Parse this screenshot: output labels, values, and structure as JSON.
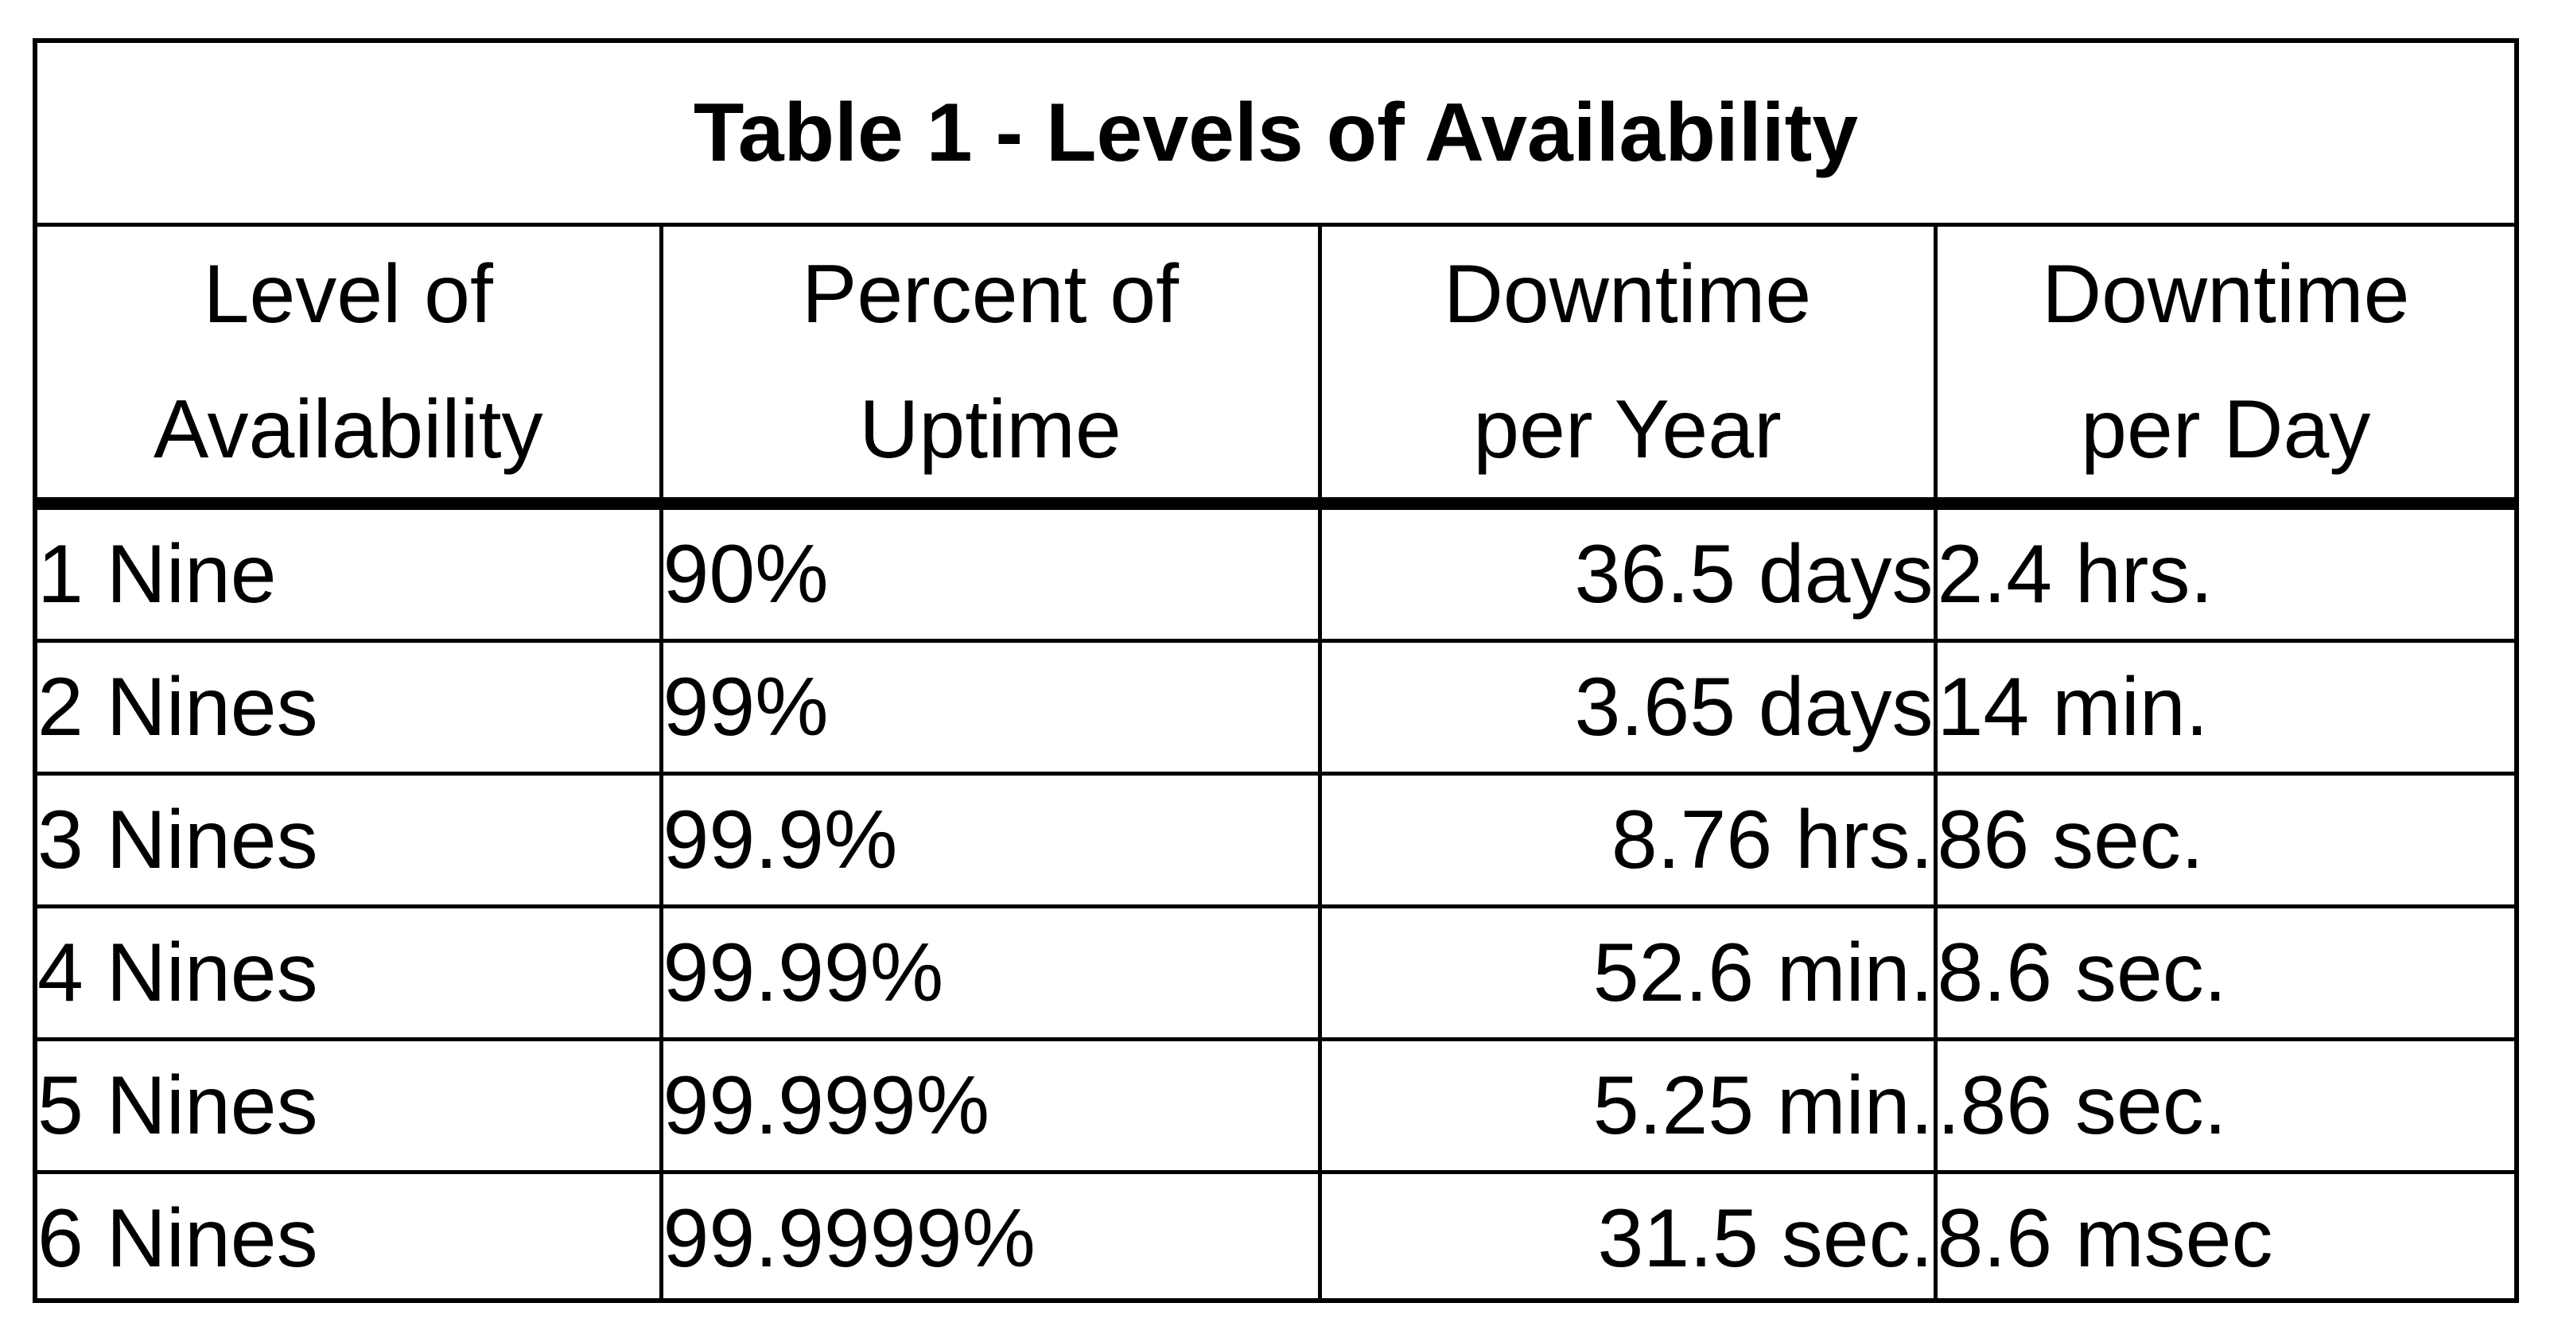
{
  "table": {
    "title": "Table 1 - Levels of Availability",
    "headers": [
      [
        "Level of",
        "Availability"
      ],
      [
        "Percent of",
        "Uptime"
      ],
      [
        "Downtime",
        "per Year"
      ],
      [
        "Downtime",
        "per Day"
      ]
    ],
    "rows": [
      [
        "1 Nine",
        "90%",
        "36.5 days",
        "2.4 hrs."
      ],
      [
        "2 Nines",
        "99%",
        "3.65 days",
        "14 min."
      ],
      [
        "3 Nines",
        "99.9%",
        "8.76 hrs.",
        "86 sec."
      ],
      [
        "4 Nines",
        "99.99%",
        "52.6 min.",
        "8.6 sec."
      ],
      [
        "5 Nines",
        "99.999%",
        "5.25 min.",
        ".86 sec."
      ],
      [
        "6 Nines",
        "99.9999%",
        "31.5 sec.",
        "8.6 msec"
      ]
    ]
  }
}
